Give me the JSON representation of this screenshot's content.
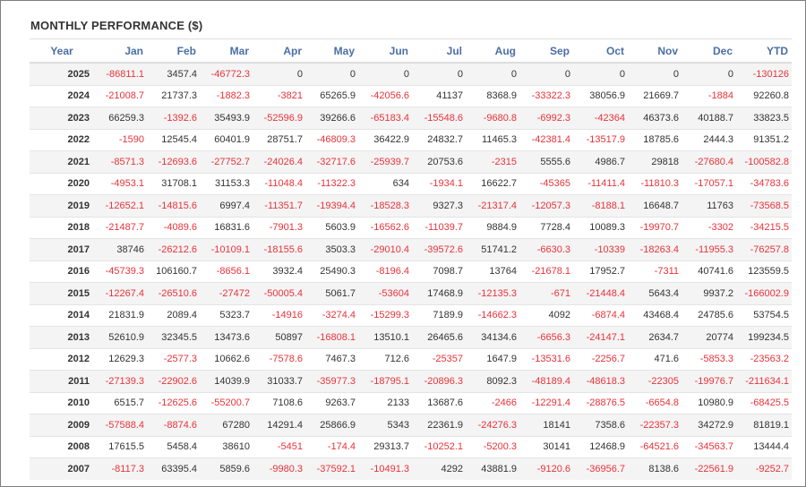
{
  "title": "MONTHLY PERFORMANCE ($)",
  "colors": {
    "header_text": "#4a6fa5",
    "negative": "#e8333a",
    "positive": "#333333",
    "stripe": "#f4f4f4"
  },
  "headers": [
    "Year",
    "Jan",
    "Feb",
    "Mar",
    "Apr",
    "May",
    "Jun",
    "Jul",
    "Aug",
    "Sep",
    "Oct",
    "Nov",
    "Dec",
    "YTD"
  ],
  "rows": [
    [
      "2025",
      "-86811.1",
      "3457.4",
      "-46772.3",
      "0",
      "0",
      "0",
      "0",
      "0",
      "0",
      "0",
      "0",
      "0",
      "-130126"
    ],
    [
      "2024",
      "-21008.7",
      "21737.3",
      "-1882.3",
      "-3821",
      "65265.9",
      "-42056.6",
      "41137",
      "8368.9",
      "-33322.3",
      "38056.9",
      "21669.7",
      "-1884",
      "92260.8"
    ],
    [
      "2023",
      "66259.3",
      "-1392.6",
      "35493.9",
      "-52596.9",
      "39266.6",
      "-65183.4",
      "-15548.6",
      "-9680.8",
      "-6992.3",
      "-42364",
      "46373.6",
      "40188.7",
      "33823.5"
    ],
    [
      "2022",
      "-1590",
      "12545.4",
      "60401.9",
      "28751.7",
      "-46809.3",
      "36422.9",
      "24832.7",
      "11465.3",
      "-42381.4",
      "-13517.9",
      "18785.6",
      "2444.3",
      "91351.2"
    ],
    [
      "2021",
      "-8571.3",
      "-12693.6",
      "-27752.7",
      "-24026.4",
      "-32717.6",
      "-25939.7",
      "20753.6",
      "-2315",
      "5555.6",
      "4986.7",
      "29818",
      "-27680.4",
      "-100582.8"
    ],
    [
      "2020",
      "-4953.1",
      "31708.1",
      "31153.3",
      "-11048.4",
      "-11322.3",
      "634",
      "-1934.1",
      "16622.7",
      "-45365",
      "-11411.4",
      "-11810.3",
      "-17057.1",
      "-34783.6"
    ],
    [
      "2019",
      "-12652.1",
      "-14815.6",
      "6997.4",
      "-11351.7",
      "-19394.4",
      "-18528.3",
      "9327.3",
      "-21317.4",
      "-12057.3",
      "-8188.1",
      "16648.7",
      "11763",
      "-73568.5"
    ],
    [
      "2018",
      "-21487.7",
      "-4089.6",
      "16831.6",
      "-7901.3",
      "5603.9",
      "-16562.6",
      "-11039.7",
      "9884.9",
      "7728.4",
      "10089.3",
      "-19970.7",
      "-3302",
      "-34215.5"
    ],
    [
      "2017",
      "38746",
      "-26212.6",
      "-10109.1",
      "-18155.6",
      "3503.3",
      "-29010.4",
      "-39572.6",
      "51741.2",
      "-6630.3",
      "-10339",
      "-18263.4",
      "-11955.3",
      "-76257.8"
    ],
    [
      "2016",
      "-45739.3",
      "106160.7",
      "-8656.1",
      "3932.4",
      "25490.3",
      "-8196.4",
      "7098.7",
      "13764",
      "-21678.1",
      "17952.7",
      "-7311",
      "40741.6",
      "123559.5"
    ],
    [
      "2015",
      "-12267.4",
      "-26510.6",
      "-27472",
      "-50005.4",
      "5061.7",
      "-53604",
      "17468.9",
      "-12135.3",
      "-671",
      "-21448.4",
      "5643.4",
      "9937.2",
      "-166002.9"
    ],
    [
      "2014",
      "21831.9",
      "2089.4",
      "5323.7",
      "-14916",
      "-3274.4",
      "-15299.3",
      "7189.9",
      "-14662.3",
      "4092",
      "-6874.4",
      "43468.4",
      "24785.6",
      "53754.5"
    ],
    [
      "2013",
      "52610.9",
      "32345.5",
      "13473.6",
      "50897",
      "-16808.1",
      "13510.1",
      "26465.6",
      "34134.6",
      "-6656.3",
      "-24147.1",
      "2634.7",
      "20774",
      "199234.5"
    ],
    [
      "2012",
      "12629.3",
      "-2577.3",
      "10662.6",
      "-7578.6",
      "7467.3",
      "712.6",
      "-25357",
      "1647.9",
      "-13531.6",
      "-2256.7",
      "471.6",
      "-5853.3",
      "-23563.2"
    ],
    [
      "2011",
      "-27139.3",
      "-22902.6",
      "14039.9",
      "31033.7",
      "-35977.3",
      "-18795.1",
      "-20896.3",
      "8092.3",
      "-48189.4",
      "-48618.3",
      "-22305",
      "-19976.7",
      "-211634.1"
    ],
    [
      "2010",
      "6515.7",
      "-12625.6",
      "-55200.7",
      "7108.6",
      "9263.7",
      "2133",
      "13687.6",
      "-2466",
      "-12291.4",
      "-28876.5",
      "-6654.8",
      "10980.9",
      "-68425.5"
    ],
    [
      "2009",
      "-57588.4",
      "-8874.6",
      "67280",
      "14291.4",
      "25866.9",
      "5343",
      "22361.9",
      "-24276.3",
      "18141",
      "7358.6",
      "-22357.3",
      "34272.9",
      "81819.1"
    ],
    [
      "2008",
      "17615.5",
      "5458.4",
      "38610",
      "-5451",
      "-174.4",
      "29313.7",
      "-10252.1",
      "-5200.3",
      "30141",
      "12468.9",
      "-64521.6",
      "-34563.7",
      "13444.4"
    ],
    [
      "2007",
      "-8117.3",
      "63395.4",
      "5859.6",
      "-9980.3",
      "-37592.1",
      "-10491.3",
      "4292",
      "43881.9",
      "-9120.6",
      "-36956.7",
      "8138.6",
      "-22561.9",
      "-9252.7"
    ]
  ]
}
